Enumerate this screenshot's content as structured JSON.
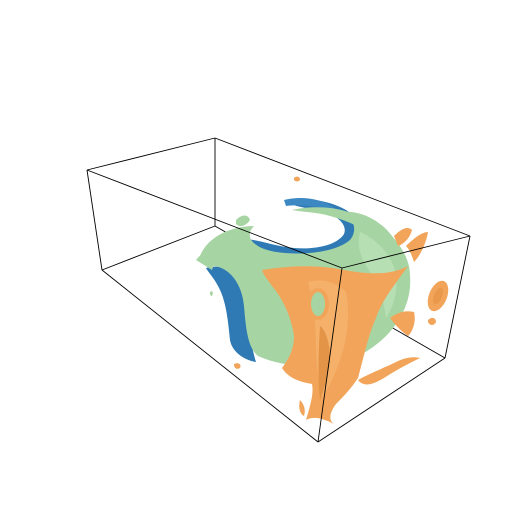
{
  "scene": {
    "type": "3d-isosurface-render",
    "bounding_box": "wireframe box",
    "background": "#ffffff",
    "surfaces": [
      {
        "name": "blue-isosurface",
        "color": "#2F7AB4"
      },
      {
        "name": "green-isosurface",
        "color": "#A6D5A3"
      },
      {
        "name": "orange-isosurface",
        "color": "#F2A55A"
      }
    ]
  }
}
